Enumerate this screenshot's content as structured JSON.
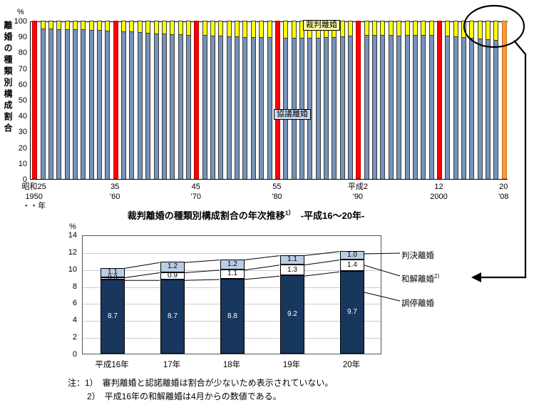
{
  "top_chart": {
    "percent_label": "%",
    "y_axis_title": "離婚の種類別構成割合",
    "label_saiban": "裁判離婚",
    "label_kyogi": "協議離婚"
  },
  "bottom_chart": {
    "percent_label": "%",
    "title_main": "裁判離婚の種類別構成割合の年次推移",
    "title_sup": "1）",
    "title_range": "　-平成16～20年-"
  },
  "legend": {
    "items": [
      {
        "label": "判決離婚",
        "sup": ""
      },
      {
        "label": "和解離婚",
        "sup": "2）"
      },
      {
        "label": "調停離婚",
        "sup": ""
      }
    ]
  },
  "notes": {
    "line1": "注：1）　審判離婚と認諾離婚は割合が少ないため表示されていない。",
    "line2": "2）　平成16年の和解離婚は4月からの数値である。"
  },
  "chart_data": [
    {
      "type": "bar",
      "subtype": "stacked-100-percent",
      "title": "離婚の種類別構成割合",
      "ylabel": "離婚の種類別構成割合",
      "ylim": [
        0,
        100
      ],
      "y_ticks": [
        100,
        90,
        80,
        70,
        60,
        50,
        40,
        30,
        20,
        10,
        0
      ],
      "year_start": 1950,
      "year_end": 2008,
      "series": [
        {
          "name": "協議離婚",
          "color": "#7593bb",
          "values": [
            95.4,
            95.2,
            95.0,
            94.8,
            94.6,
            94.6,
            94.4,
            94.2,
            94.0,
            93.8,
            93.6,
            93.4,
            93.2,
            92.8,
            92.4,
            92.0,
            91.8,
            91.6,
            91.4,
            91.2,
            91.0,
            90.8,
            90.6,
            90.4,
            90.2,
            90.0,
            89.8,
            89.6,
            89.6,
            89.6,
            89.6,
            89.4,
            89.2,
            89.0,
            89.2,
            89.4,
            89.6,
            89.8,
            90.2,
            90.6,
            90.9,
            91.0,
            91.2,
            91.0,
            90.8,
            90.6,
            90.8,
            91.0,
            91.2,
            91.1,
            91.0,
            90.6,
            90.2,
            89.8,
            89.2,
            88.6,
            88.2,
            87.8,
            87.4
          ]
        },
        {
          "name": "裁判離婚",
          "color": "#ffff00",
          "values_rule": "remainder_to_100"
        }
      ],
      "highlight": {
        "red_years": [
          1950,
          1960,
          1970,
          1980,
          1990,
          2000
        ],
        "red_color": "#ff0000",
        "orange_year": 2008,
        "orange_color": "#ff9933"
      },
      "x_ticks": [
        {
          "year": 1950,
          "line1": "昭和25",
          "line2": "1950",
          "line3": "・・年"
        },
        {
          "year": 1960,
          "line1": "35",
          "line2": "'60"
        },
        {
          "year": 1970,
          "line1": "45",
          "line2": "'70"
        },
        {
          "year": 1980,
          "line1": "55",
          "line2": "'80"
        },
        {
          "year": 1990,
          "line1": "平成2",
          "line2": "'90"
        },
        {
          "year": 2000,
          "line1": "12",
          "line2": "2000"
        },
        {
          "year": 2008,
          "line1": "20",
          "line2": "'08"
        }
      ]
    },
    {
      "type": "bar",
      "subtype": "stacked",
      "title": "裁判離婚の種類別構成割合の年次推移 -平成16～20年-",
      "categories": [
        "平成16年",
        "17年",
        "18年",
        "19年",
        "20年"
      ],
      "ylim": [
        0,
        14
      ],
      "y_ticks": [
        14,
        12,
        10,
        8,
        6,
        4,
        2,
        0
      ],
      "series": [
        {
          "name": "調停離婚",
          "color": "#17375e",
          "text_color": "#ffffff",
          "values": [
            8.7,
            8.7,
            8.8,
            9.2,
            9.7
          ]
        },
        {
          "name": "和解離婚",
          "color": "#ffffff",
          "text_color": "#000000",
          "values": [
            0.3,
            0.9,
            1.1,
            1.3,
            1.4
          ]
        },
        {
          "name": "判決離婚",
          "color": "#b9cde5",
          "text_color": "#000000",
          "values": [
            1.1,
            1.2,
            1.2,
            1.1,
            1.0
          ]
        }
      ]
    }
  ]
}
